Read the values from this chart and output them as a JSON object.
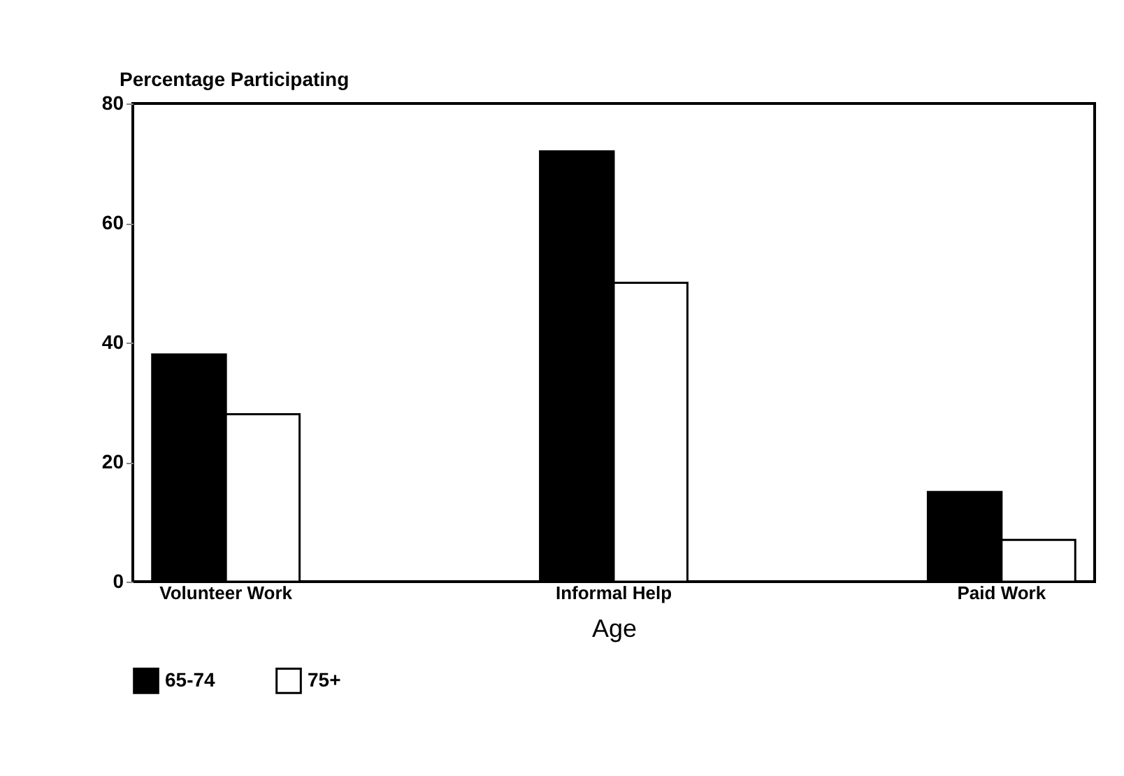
{
  "chart_data": {
    "type": "bar",
    "ylabel": "Percentage Participating",
    "xlabel": "Age",
    "categories": [
      "Volunteer Work",
      "Informal Help",
      "Paid Work"
    ],
    "series": [
      {
        "name": "65-74",
        "color": "#000000",
        "values": [
          38,
          72,
          15
        ]
      },
      {
        "name": "75+",
        "color": "#ffffff",
        "values": [
          28,
          50,
          7
        ]
      }
    ],
    "ylim": [
      0,
      80
    ],
    "yticks": [
      0,
      20,
      40,
      60,
      80
    ],
    "grid": false,
    "legend": "bottom"
  }
}
